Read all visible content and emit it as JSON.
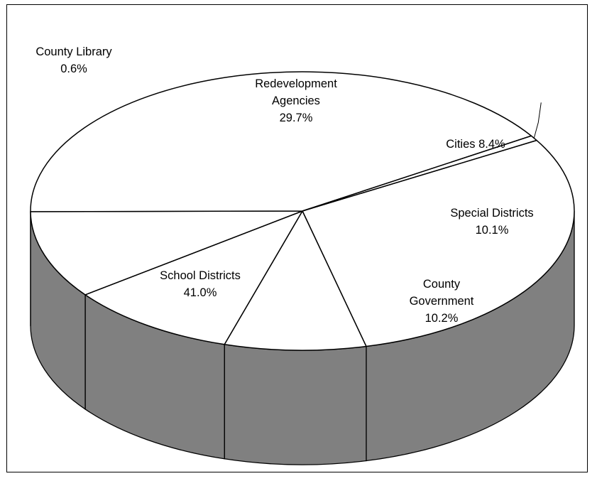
{
  "chart_data": {
    "type": "pie",
    "style": "3d-tilted",
    "title": "",
    "legend": "none",
    "slices": [
      {
        "name": "Redevelopment Agencies",
        "value": 29.7,
        "label_lines": [
          "Redevelopment",
          "Agencies",
          "29.7%"
        ]
      },
      {
        "name": "Cities",
        "value": 8.4,
        "label_lines": [
          "Cities 8.4%"
        ]
      },
      {
        "name": "Special Districts",
        "value": 10.1,
        "label_lines": [
          "Special Districts",
          "10.1%"
        ]
      },
      {
        "name": "County Government",
        "value": 10.2,
        "label_lines": [
          "County",
          "Government",
          "10.2%"
        ]
      },
      {
        "name": "School Districts",
        "value": 41.0,
        "label_lines": [
          "School Districts",
          "41.0%"
        ]
      },
      {
        "name": "County Library",
        "value": 0.6,
        "label_lines": [
          "County Library",
          "0.6%"
        ]
      }
    ],
    "colors": {
      "top_face": "#ffffff",
      "side_face": "#808080",
      "stroke": "#000000"
    }
  }
}
